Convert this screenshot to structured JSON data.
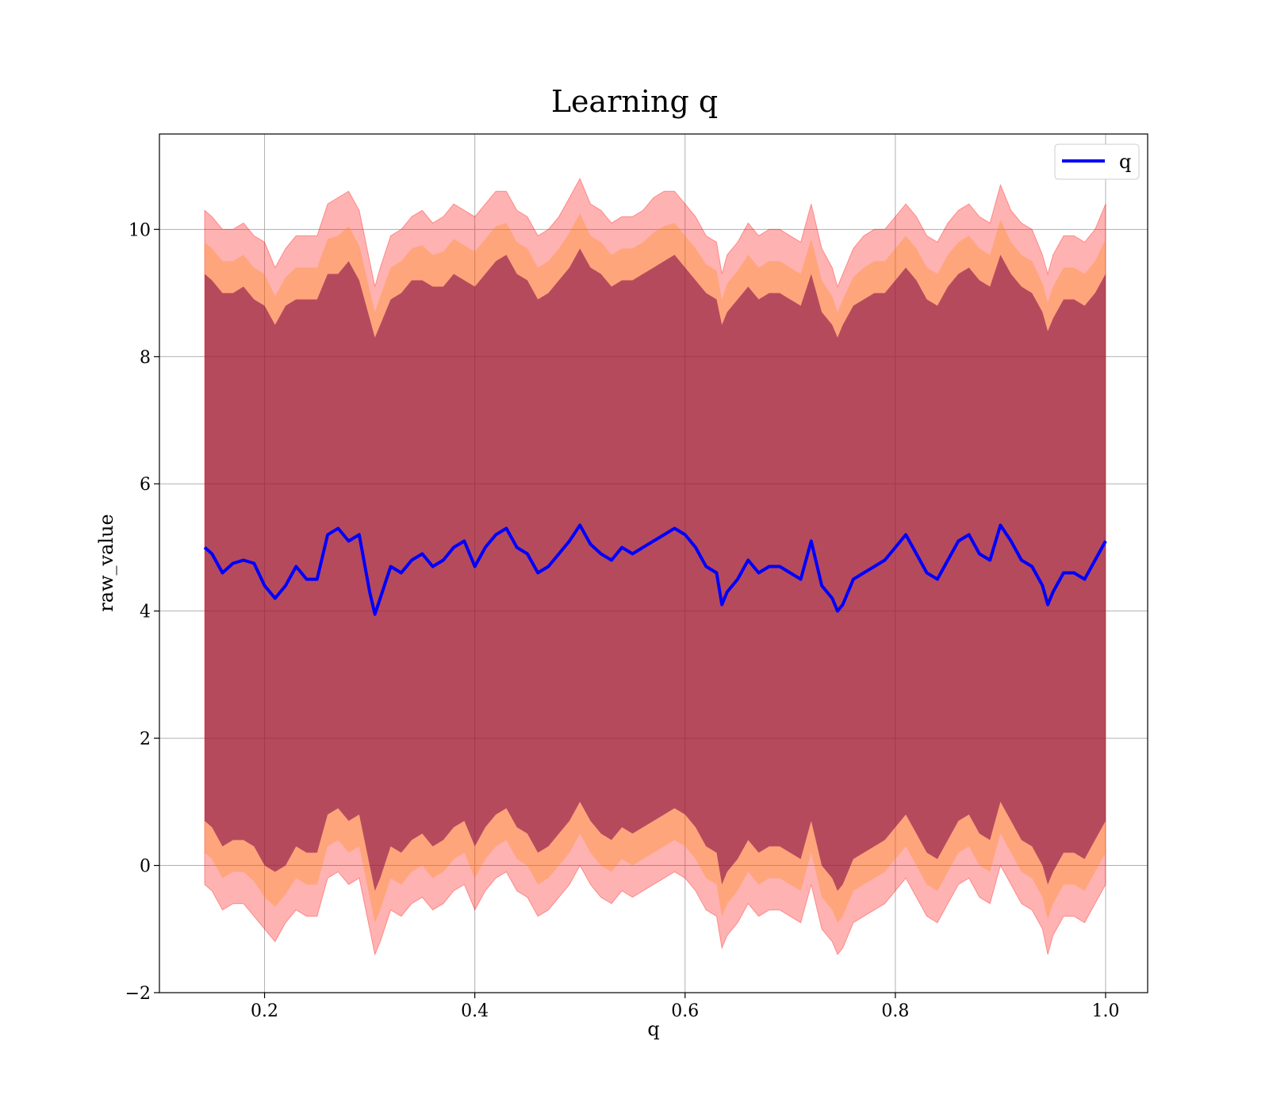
{
  "chart_data": {
    "type": "line",
    "title": "Learning q",
    "xlabel": "q",
    "ylabel": "raw_value",
    "xlim": [
      0.1,
      1.04
    ],
    "ylim": [
      -2,
      11.5
    ],
    "x_ticks": [
      0.2,
      0.4,
      0.6,
      0.8,
      1.0
    ],
    "x_tick_labels": [
      "0.2",
      "0.4",
      "0.6",
      "0.8",
      "1.0"
    ],
    "y_ticks": [
      -2,
      0,
      2,
      4,
      6,
      8,
      10
    ],
    "y_tick_labels": [
      "−2",
      "0",
      "2",
      "4",
      "6",
      "8",
      "10"
    ],
    "grid": true,
    "legend": {
      "position": "top-right",
      "entries": [
        {
          "label": "q",
          "color": "#0000ff"
        }
      ]
    },
    "x": [
      0.143,
      0.15,
      0.16,
      0.17,
      0.18,
      0.19,
      0.2,
      0.21,
      0.22,
      0.23,
      0.24,
      0.25,
      0.26,
      0.27,
      0.28,
      0.29,
      0.3,
      0.305,
      0.31,
      0.32,
      0.33,
      0.34,
      0.35,
      0.36,
      0.37,
      0.38,
      0.39,
      0.4,
      0.41,
      0.42,
      0.43,
      0.44,
      0.45,
      0.46,
      0.47,
      0.48,
      0.49,
      0.5,
      0.51,
      0.52,
      0.53,
      0.54,
      0.55,
      0.56,
      0.57,
      0.58,
      0.59,
      0.6,
      0.61,
      0.62,
      0.63,
      0.635,
      0.64,
      0.65,
      0.66,
      0.67,
      0.68,
      0.69,
      0.7,
      0.71,
      0.72,
      0.73,
      0.74,
      0.745,
      0.75,
      0.76,
      0.77,
      0.78,
      0.79,
      0.8,
      0.81,
      0.82,
      0.83,
      0.84,
      0.85,
      0.86,
      0.87,
      0.88,
      0.89,
      0.9,
      0.91,
      0.92,
      0.93,
      0.94,
      0.945,
      0.95,
      0.96,
      0.97,
      0.98,
      0.99,
      1.0
    ],
    "series": [
      {
        "name": "q",
        "color": "#0000ff",
        "values": [
          5.0,
          4.9,
          4.6,
          4.75,
          4.8,
          4.75,
          4.4,
          4.2,
          4.4,
          4.7,
          4.5,
          4.5,
          5.2,
          5.3,
          5.1,
          5.2,
          4.3,
          3.95,
          4.2,
          4.7,
          4.6,
          4.8,
          4.9,
          4.7,
          4.8,
          5.0,
          5.1,
          4.7,
          5.0,
          5.2,
          5.3,
          5.0,
          4.9,
          4.6,
          4.7,
          4.9,
          5.1,
          5.35,
          5.05,
          4.9,
          4.8,
          5.0,
          4.9,
          5.0,
          5.1,
          5.2,
          5.3,
          5.2,
          5.0,
          4.7,
          4.6,
          4.1,
          4.3,
          4.5,
          4.8,
          4.6,
          4.7,
          4.7,
          4.6,
          4.5,
          5.1,
          4.4,
          4.2,
          4.0,
          4.1,
          4.5,
          4.6,
          4.7,
          4.8,
          5.0,
          5.2,
          4.9,
          4.6,
          4.5,
          4.8,
          5.1,
          5.2,
          4.9,
          4.8,
          5.35,
          5.1,
          4.8,
          4.7,
          4.4,
          4.1,
          4.3,
          4.6,
          4.6,
          4.5,
          4.8,
          5.1
        ],
        "upper_inner": [
          9.3,
          9.2,
          9.0,
          9.0,
          9.1,
          8.9,
          8.8,
          8.5,
          8.8,
          8.9,
          8.9,
          8.9,
          9.3,
          9.3,
          9.5,
          9.2,
          8.6,
          8.3,
          8.5,
          8.9,
          9.0,
          9.2,
          9.2,
          9.1,
          9.1,
          9.3,
          9.2,
          9.1,
          9.3,
          9.5,
          9.6,
          9.3,
          9.2,
          8.9,
          9.0,
          9.2,
          9.4,
          9.7,
          9.4,
          9.3,
          9.1,
          9.2,
          9.2,
          9.3,
          9.4,
          9.5,
          9.6,
          9.4,
          9.2,
          9.0,
          8.9,
          8.5,
          8.7,
          8.9,
          9.1,
          8.9,
          9.0,
          9.0,
          8.9,
          8.8,
          9.3,
          8.7,
          8.5,
          8.3,
          8.5,
          8.8,
          8.9,
          9.0,
          9.0,
          9.2,
          9.4,
          9.2,
          8.9,
          8.8,
          9.1,
          9.3,
          9.4,
          9.2,
          9.1,
          9.6,
          9.3,
          9.1,
          9.0,
          8.7,
          8.4,
          8.6,
          8.9,
          8.9,
          8.8,
          9.0,
          9.3
        ],
        "lower_inner": [
          0.7,
          0.6,
          0.3,
          0.4,
          0.4,
          0.3,
          0.0,
          -0.1,
          0.0,
          0.3,
          0.2,
          0.2,
          0.8,
          0.9,
          0.7,
          0.8,
          0.0,
          -0.4,
          -0.2,
          0.3,
          0.2,
          0.4,
          0.5,
          0.3,
          0.4,
          0.6,
          0.7,
          0.3,
          0.6,
          0.8,
          0.9,
          0.6,
          0.5,
          0.2,
          0.3,
          0.5,
          0.7,
          1.0,
          0.7,
          0.5,
          0.4,
          0.6,
          0.5,
          0.6,
          0.7,
          0.8,
          0.9,
          0.8,
          0.6,
          0.3,
          0.2,
          -0.3,
          -0.1,
          0.1,
          0.4,
          0.2,
          0.3,
          0.3,
          0.2,
          0.1,
          0.7,
          0.0,
          -0.2,
          -0.4,
          -0.3,
          0.1,
          0.2,
          0.3,
          0.4,
          0.6,
          0.8,
          0.5,
          0.2,
          0.1,
          0.4,
          0.7,
          0.8,
          0.5,
          0.4,
          1.0,
          0.7,
          0.4,
          0.3,
          0.0,
          -0.3,
          -0.1,
          0.2,
          0.2,
          0.1,
          0.4,
          0.7
        ],
        "upper_outer": [
          10.3,
          10.2,
          10.0,
          10.0,
          10.1,
          9.9,
          9.8,
          9.4,
          9.7,
          9.9,
          9.9,
          9.9,
          10.4,
          10.5,
          10.6,
          10.3,
          9.5,
          9.1,
          9.4,
          9.9,
          10.0,
          10.2,
          10.3,
          10.1,
          10.2,
          10.4,
          10.3,
          10.2,
          10.4,
          10.6,
          10.6,
          10.3,
          10.2,
          9.9,
          10.0,
          10.2,
          10.5,
          10.8,
          10.4,
          10.3,
          10.1,
          10.2,
          10.2,
          10.3,
          10.5,
          10.6,
          10.6,
          10.4,
          10.2,
          9.9,
          9.8,
          9.3,
          9.6,
          9.8,
          10.1,
          9.9,
          10.0,
          10.0,
          9.9,
          9.8,
          10.4,
          9.7,
          9.4,
          9.1,
          9.3,
          9.7,
          9.9,
          10.0,
          10.0,
          10.2,
          10.4,
          10.2,
          9.9,
          9.8,
          10.1,
          10.3,
          10.4,
          10.2,
          10.1,
          10.7,
          10.3,
          10.1,
          10.0,
          9.6,
          9.3,
          9.6,
          9.9,
          9.9,
          9.8,
          10.0,
          10.4
        ],
        "lower_outer": [
          -0.3,
          -0.4,
          -0.7,
          -0.6,
          -0.6,
          -0.8,
          -1.0,
          -1.2,
          -0.9,
          -0.7,
          -0.8,
          -0.8,
          -0.2,
          -0.1,
          -0.3,
          -0.2,
          -1.0,
          -1.4,
          -1.2,
          -0.7,
          -0.8,
          -0.6,
          -0.5,
          -0.7,
          -0.6,
          -0.4,
          -0.3,
          -0.7,
          -0.4,
          -0.2,
          -0.1,
          -0.4,
          -0.5,
          -0.8,
          -0.7,
          -0.5,
          -0.3,
          0.0,
          -0.3,
          -0.5,
          -0.6,
          -0.4,
          -0.5,
          -0.4,
          -0.3,
          -0.2,
          -0.1,
          -0.2,
          -0.4,
          -0.7,
          -0.8,
          -1.3,
          -1.1,
          -0.9,
          -0.6,
          -0.8,
          -0.7,
          -0.7,
          -0.8,
          -0.9,
          -0.3,
          -1.0,
          -1.2,
          -1.4,
          -1.3,
          -0.9,
          -0.8,
          -0.7,
          -0.6,
          -0.4,
          -0.2,
          -0.5,
          -0.8,
          -0.9,
          -0.6,
          -0.3,
          -0.2,
          -0.5,
          -0.6,
          0.0,
          -0.3,
          -0.6,
          -0.7,
          -1.0,
          -1.4,
          -1.1,
          -0.8,
          -0.8,
          -0.9,
          -0.6,
          -0.3
        ]
      }
    ],
    "band_colors": {
      "outer": "#ff0000",
      "middle": "#ff8800",
      "inner": "#7a0044"
    }
  }
}
